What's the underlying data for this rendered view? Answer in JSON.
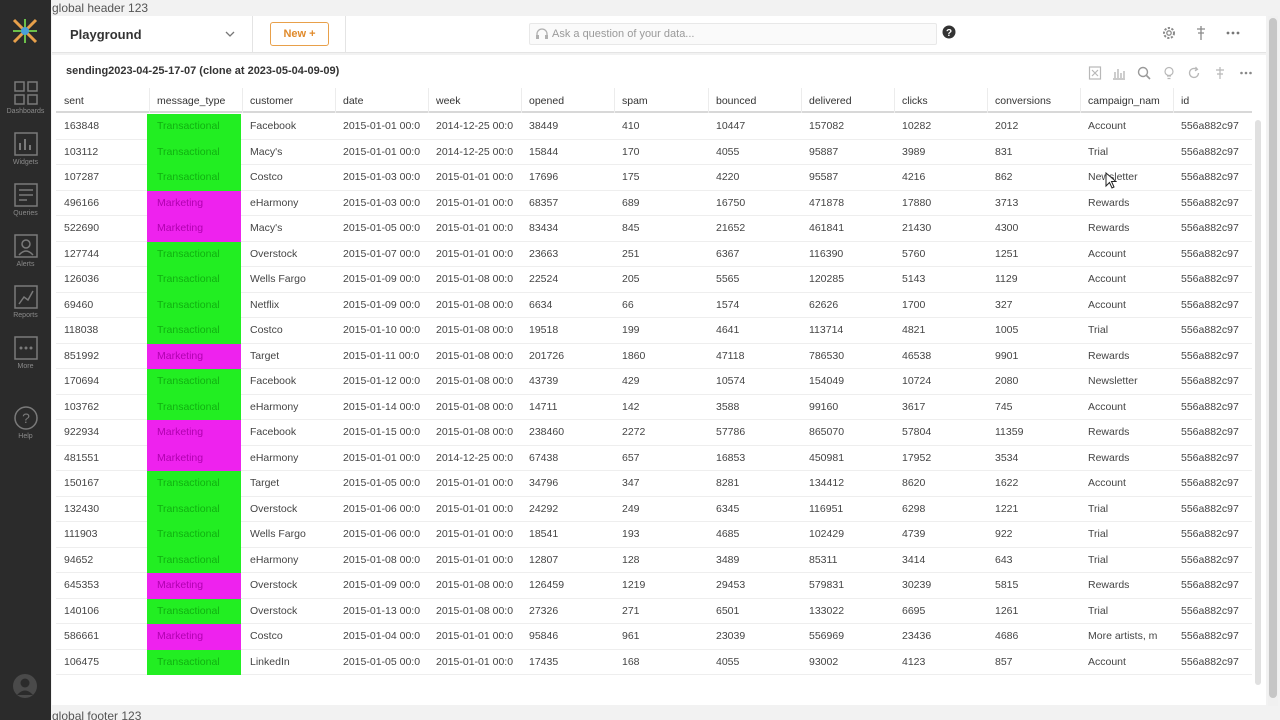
{
  "global_header": "global header 123",
  "global_footer": "global footer 123",
  "sidebar": {
    "items": [
      {
        "label": "Dashboards",
        "icon": "dashboards-icon"
      },
      {
        "label": "Widgets",
        "icon": "widgets-icon"
      },
      {
        "label": "Queries",
        "icon": "queries-icon"
      },
      {
        "label": "Alerts",
        "icon": "alerts-icon"
      },
      {
        "label": "Reports",
        "icon": "reports-icon"
      },
      {
        "label": "More",
        "icon": "more-icon"
      },
      {
        "label": "Help",
        "icon": "help-icon"
      }
    ]
  },
  "topbar": {
    "playground": "Playground",
    "new_label": "New +",
    "ask_placeholder": "Ask a question of your data..."
  },
  "panel": {
    "title": "sending2023-04-25-17-07 (clone at 2023-05-04-09-09)"
  },
  "colors": {
    "transactional": "#22ee22",
    "marketing": "#ee22ee",
    "accent": "#e08a2b"
  },
  "table": {
    "columns": [
      "sent",
      "message_type",
      "customer",
      "date",
      "week",
      "opened",
      "spam",
      "bounced",
      "delivered",
      "clicks",
      "conversions",
      "campaign_nam",
      "id"
    ],
    "rows": [
      [
        "163848",
        "Transactional",
        "Facebook",
        "2015-01-01 00:0",
        "2014-12-25 00:0",
        "38449",
        "410",
        "10447",
        "157082",
        "10282",
        "2012",
        "Account",
        "556a882c97"
      ],
      [
        "103112",
        "Transactional",
        "Macy's",
        "2015-01-01 00:0",
        "2014-12-25 00:0",
        "15844",
        "170",
        "4055",
        "95887",
        "3989",
        "831",
        "Trial",
        "556a882c97"
      ],
      [
        "107287",
        "Transactional",
        "Costco",
        "2015-01-03 00:0",
        "2015-01-01 00:0",
        "17696",
        "175",
        "4220",
        "95587",
        "4216",
        "862",
        "Newsletter",
        "556a882c97"
      ],
      [
        "496166",
        "Marketing",
        "eHarmony",
        "2015-01-03 00:0",
        "2015-01-01 00:0",
        "68357",
        "689",
        "16750",
        "471878",
        "17880",
        "3713",
        "Rewards",
        "556a882c97"
      ],
      [
        "522690",
        "Marketing",
        "Macy's",
        "2015-01-05 00:0",
        "2015-01-01 00:0",
        "83434",
        "845",
        "21652",
        "461841",
        "21430",
        "4300",
        "Rewards",
        "556a882c97"
      ],
      [
        "127744",
        "Transactional",
        "Overstock",
        "2015-01-07 00:0",
        "2015-01-01 00:0",
        "23663",
        "251",
        "6367",
        "116390",
        "5760",
        "1251",
        "Account",
        "556a882c97"
      ],
      [
        "126036",
        "Transactional",
        "Wells Fargo",
        "2015-01-09 00:0",
        "2015-01-08 00:0",
        "22524",
        "205",
        "5565",
        "120285",
        "5143",
        "1129",
        "Account",
        "556a882c97"
      ],
      [
        "69460",
        "Transactional",
        "Netflix",
        "2015-01-09 00:0",
        "2015-01-08 00:0",
        "6634",
        "66",
        "1574",
        "62626",
        "1700",
        "327",
        "Account",
        "556a882c97"
      ],
      [
        "118038",
        "Transactional",
        "Costco",
        "2015-01-10 00:0",
        "2015-01-08 00:0",
        "19518",
        "199",
        "4641",
        "113714",
        "4821",
        "1005",
        "Trial",
        "556a882c97"
      ],
      [
        "851992",
        "Marketing",
        "Target",
        "2015-01-11 00:0",
        "2015-01-08 00:0",
        "201726",
        "1860",
        "47118",
        "786530",
        "46538",
        "9901",
        "Rewards",
        "556a882c97"
      ],
      [
        "170694",
        "Transactional",
        "Facebook",
        "2015-01-12 00:0",
        "2015-01-08 00:0",
        "43739",
        "429",
        "10574",
        "154049",
        "10724",
        "2080",
        "Newsletter",
        "556a882c97"
      ],
      [
        "103762",
        "Transactional",
        "eHarmony",
        "2015-01-14 00:0",
        "2015-01-08 00:0",
        "14711",
        "142",
        "3588",
        "99160",
        "3617",
        "745",
        "Account",
        "556a882c97"
      ],
      [
        "922934",
        "Marketing",
        "Facebook",
        "2015-01-15 00:0",
        "2015-01-08 00:0",
        "238460",
        "2272",
        "57786",
        "865070",
        "57804",
        "11359",
        "Rewards",
        "556a882c97"
      ],
      [
        "481551",
        "Marketing",
        "eHarmony",
        "2015-01-01 00:0",
        "2014-12-25 00:0",
        "67438",
        "657",
        "16853",
        "450981",
        "17952",
        "3534",
        "Rewards",
        "556a882c97"
      ],
      [
        "150167",
        "Transactional",
        "Target",
        "2015-01-05 00:0",
        "2015-01-01 00:0",
        "34796",
        "347",
        "8281",
        "134412",
        "8620",
        "1622",
        "Account",
        "556a882c97"
      ],
      [
        "132430",
        "Transactional",
        "Overstock",
        "2015-01-06 00:0",
        "2015-01-01 00:0",
        "24292",
        "249",
        "6345",
        "116951",
        "6298",
        "1221",
        "Trial",
        "556a882c97"
      ],
      [
        "111903",
        "Transactional",
        "Wells Fargo",
        "2015-01-06 00:0",
        "2015-01-01 00:0",
        "18541",
        "193",
        "4685",
        "102429",
        "4739",
        "922",
        "Trial",
        "556a882c97"
      ],
      [
        "94652",
        "Transactional",
        "eHarmony",
        "2015-01-08 00:0",
        "2015-01-01 00:0",
        "12807",
        "128",
        "3489",
        "85311",
        "3414",
        "643",
        "Trial",
        "556a882c97"
      ],
      [
        "645353",
        "Marketing",
        "Overstock",
        "2015-01-09 00:0",
        "2015-01-08 00:0",
        "126459",
        "1219",
        "29453",
        "579831",
        "30239",
        "5815",
        "Rewards",
        "556a882c97"
      ],
      [
        "140106",
        "Transactional",
        "Overstock",
        "2015-01-13 00:0",
        "2015-01-08 00:0",
        "27326",
        "271",
        "6501",
        "133022",
        "6695",
        "1261",
        "Trial",
        "556a882c97"
      ],
      [
        "586661",
        "Marketing",
        "Costco",
        "2015-01-04 00:0",
        "2015-01-01 00:0",
        "95846",
        "961",
        "23039",
        "556969",
        "23436",
        "4686",
        "More artists, m",
        "556a882c97"
      ],
      [
        "106475",
        "Transactional",
        "LinkedIn",
        "2015-01-05 00:0",
        "2015-01-01 00:0",
        "17435",
        "168",
        "4055",
        "93002",
        "4123",
        "857",
        "Account",
        "556a882c97"
      ]
    ]
  }
}
